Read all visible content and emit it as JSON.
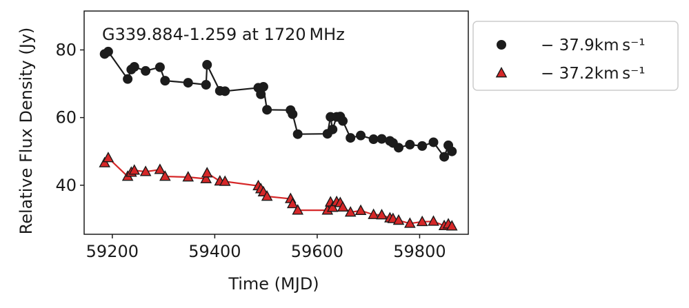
{
  "chart_data": {
    "type": "line",
    "title": "G339.884-1.259 at 1720 MHz",
    "xlabel": "Time (MJD)",
    "ylabel": "Relative Flux Density (Jy)",
    "xlim": [
      59145,
      59895
    ],
    "ylim": [
      25.5,
      91.5
    ],
    "xticks": [
      59200,
      59400,
      59600,
      59800
    ],
    "yticks": [
      40,
      60,
      80
    ],
    "grid": false,
    "legend_position": "outside-right",
    "series": [
      {
        "name": "− 37.9km s⁻¹",
        "color": "#1c1c1c",
        "marker": "circle",
        "x": [
          59185,
          59192,
          59230,
          59237,
          59243,
          59265,
          59293,
          59303,
          59348,
          59383,
          59385,
          59410,
          59420,
          59485,
          59490,
          59495,
          59502,
          59548,
          59552,
          59562,
          59620,
          59626,
          59630,
          59638,
          59645,
          59650,
          59665,
          59685,
          59710,
          59726,
          59742,
          59748,
          59759,
          59781,
          59805,
          59827,
          59848,
          59856,
          59863
        ],
        "y": [
          78.8,
          79.5,
          71.4,
          74.2,
          75.0,
          73.8,
          74.9,
          70.9,
          70.3,
          69.7,
          75.6,
          67.9,
          67.8,
          68.8,
          66.9,
          69.1,
          62.3,
          62.2,
          61.0,
          55.1,
          55.2,
          60.2,
          56.5,
          60.2,
          60.3,
          59.0,
          54.0,
          54.7,
          53.6,
          53.7,
          53.1,
          52.5,
          51.1,
          52.0,
          51.6,
          52.7,
          48.4,
          51.8,
          50.0
        ]
      },
      {
        "name": "− 37.2km s⁻¹",
        "color": "#d62728",
        "marker": "triangle",
        "x": [
          59185,
          59192,
          59230,
          59237,
          59243,
          59265,
          59293,
          59303,
          59348,
          59383,
          59385,
          59410,
          59420,
          59485,
          59490,
          59495,
          59502,
          59548,
          59552,
          59562,
          59620,
          59626,
          59630,
          59638,
          59645,
          59650,
          59665,
          59685,
          59710,
          59726,
          59742,
          59748,
          59759,
          59781,
          59805,
          59827,
          59848,
          59856,
          59863
        ],
        "y": [
          46.6,
          48.1,
          42.6,
          43.8,
          44.4,
          44.0,
          44.6,
          42.6,
          42.4,
          41.9,
          43.6,
          41.2,
          41.1,
          39.8,
          38.9,
          38.0,
          36.7,
          36.0,
          34.5,
          32.6,
          32.6,
          35.0,
          33.4,
          35.1,
          34.8,
          33.5,
          32.0,
          32.5,
          31.3,
          31.2,
          30.3,
          30.1,
          29.6,
          28.7,
          29.2,
          29.3,
          28.0,
          28.5,
          27.9
        ]
      }
    ]
  }
}
